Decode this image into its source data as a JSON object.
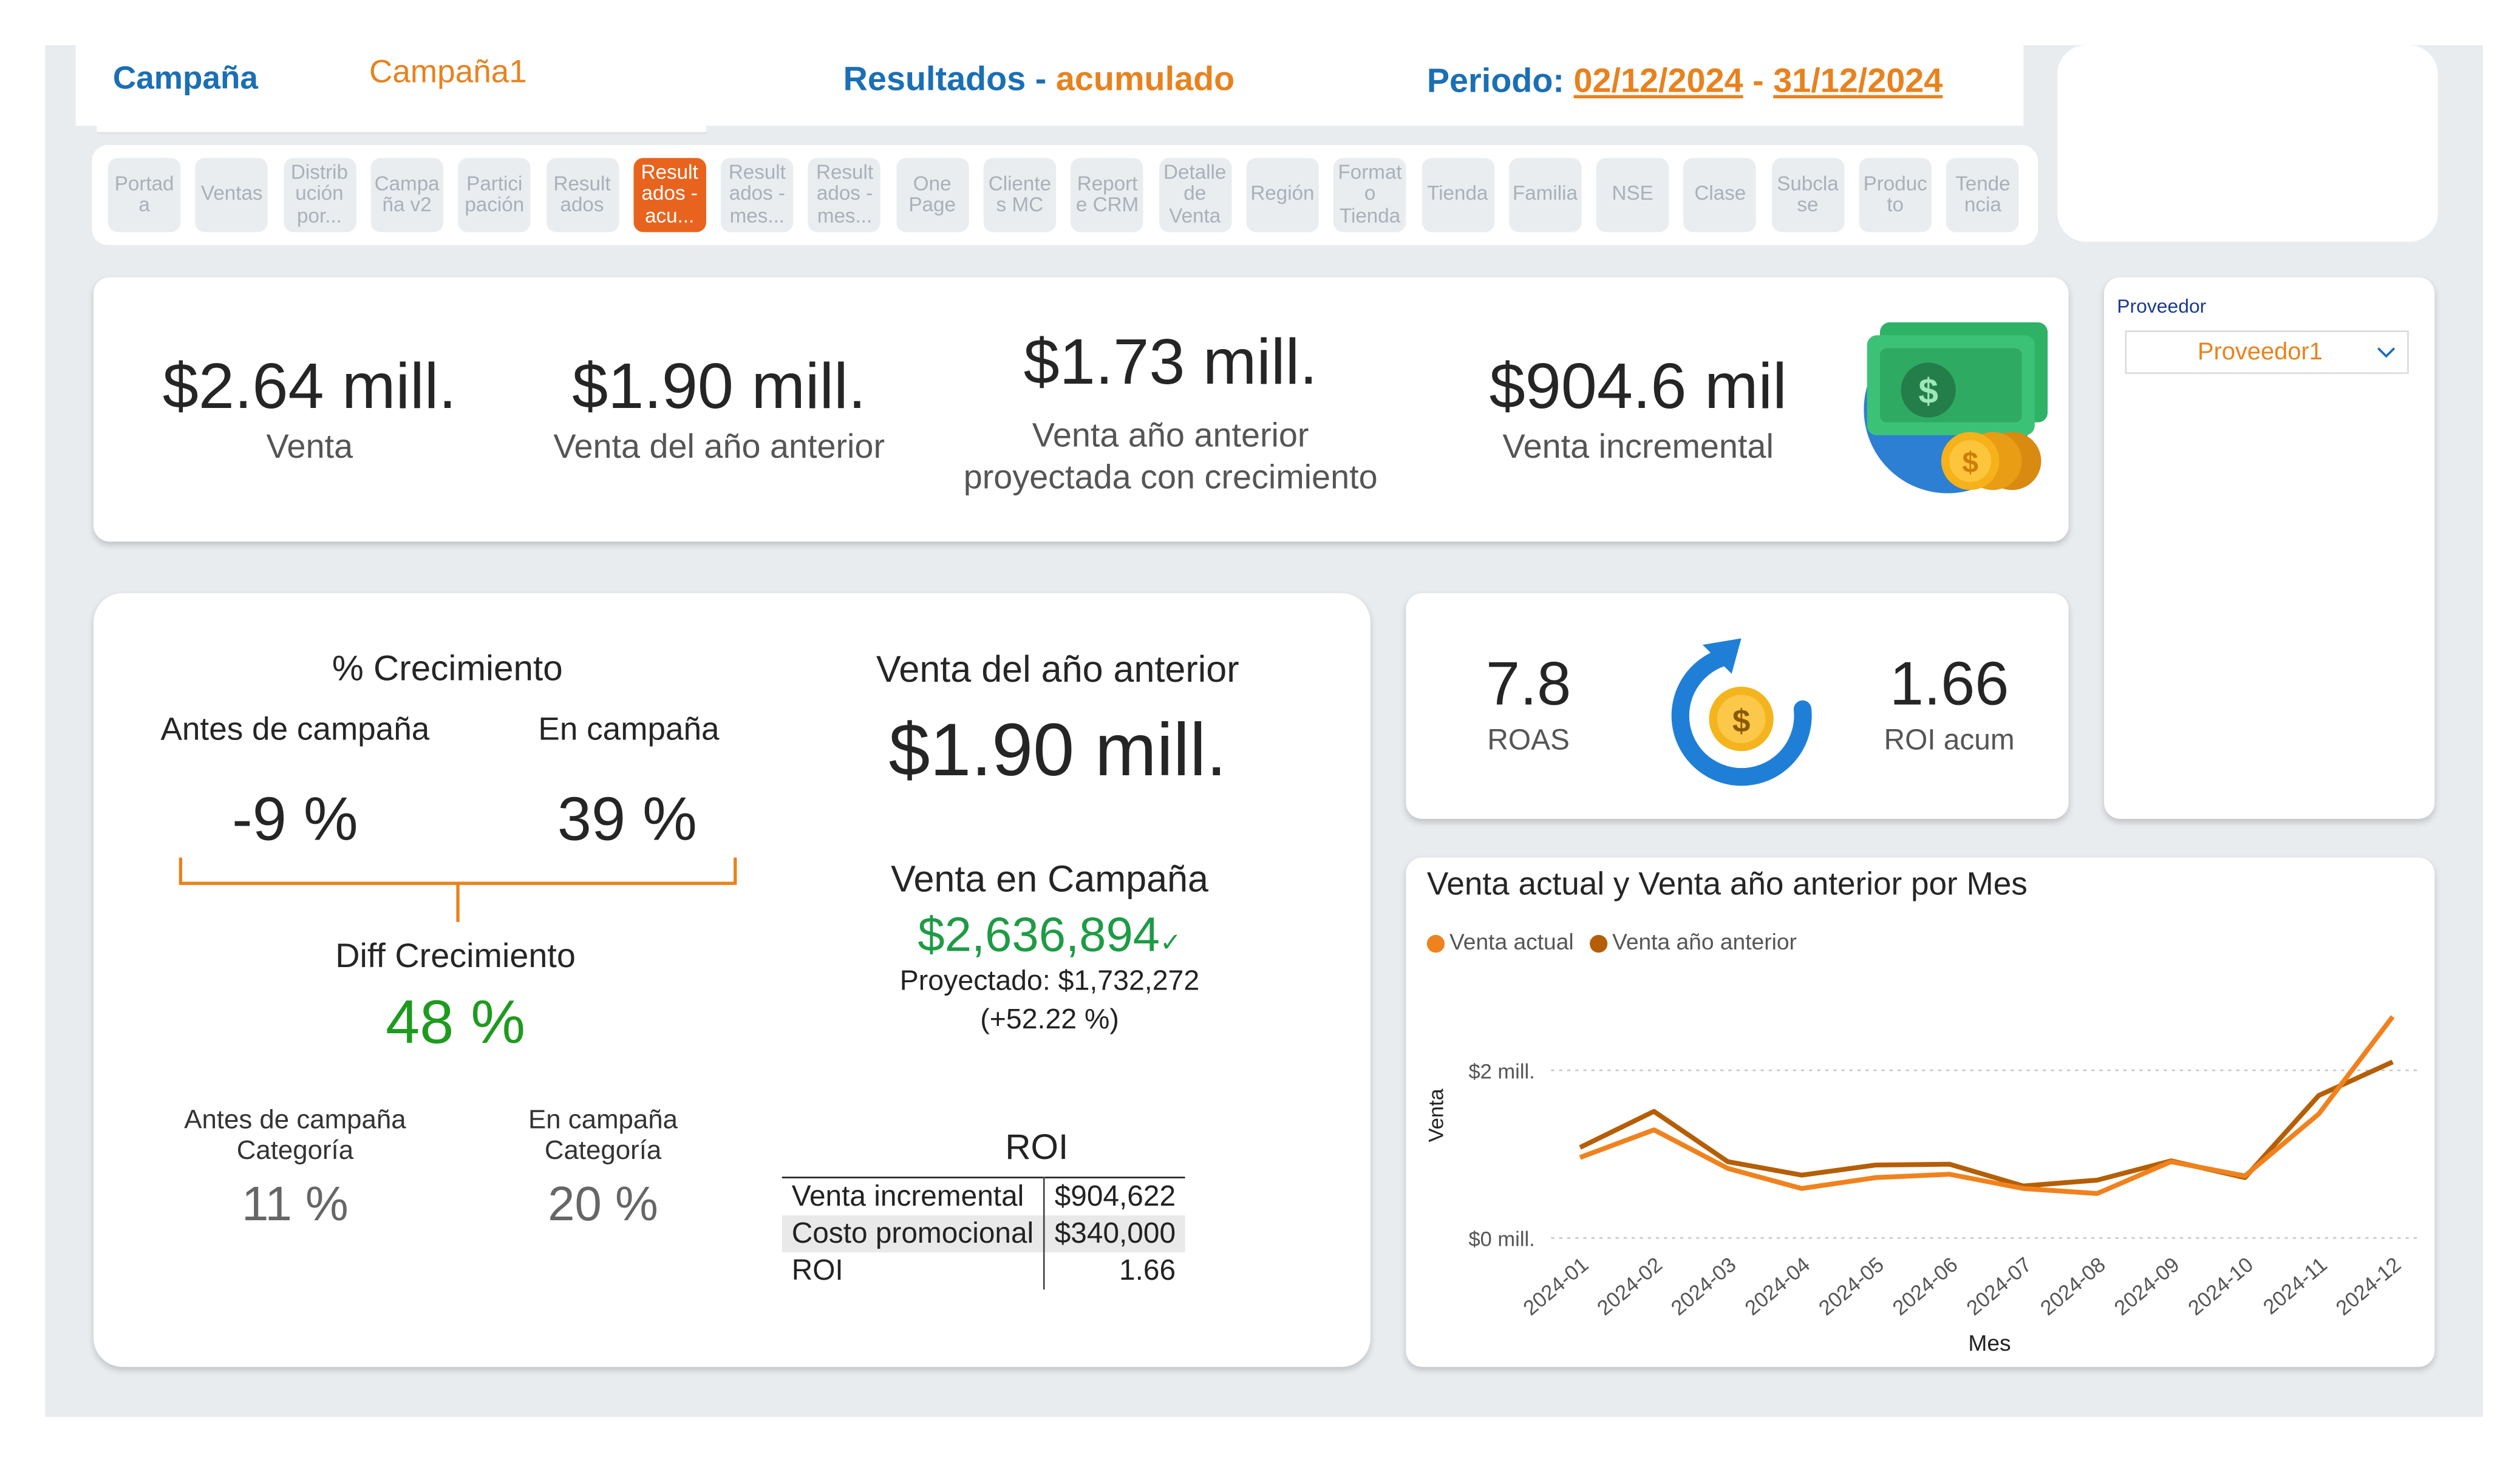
{
  "header": {
    "campaign_label": "Campaña",
    "campaign_value": "Campaña1",
    "title_part1": "Resultados",
    "title_sep": "-",
    "title_part2": "acumulado",
    "period_label": "Periodo:",
    "period_start": "02/12/2024",
    "period_sep": "-",
    "period_end": "31/12/2024"
  },
  "tabs": [
    {
      "label": "Portad a",
      "active": false
    },
    {
      "label": "Ventas",
      "active": false
    },
    {
      "label": "Distrib ución por...",
      "active": false
    },
    {
      "label": "Campa ña v2",
      "active": false
    },
    {
      "label": "Partici pación",
      "active": false
    },
    {
      "label": "Result ados",
      "active": false
    },
    {
      "label": "Result ados - acu...",
      "active": true
    },
    {
      "label": "Result ados - mes...",
      "active": false
    },
    {
      "label": "Result ados - mes...",
      "active": false
    },
    {
      "label": "One Page",
      "active": false
    },
    {
      "label": "Cliente s MC",
      "active": false
    },
    {
      "label": "Report e CRM",
      "active": false
    },
    {
      "label": "Detalle de Venta",
      "active": false
    },
    {
      "label": "Región",
      "active": false
    },
    {
      "label": "Format o Tienda",
      "active": false
    },
    {
      "label": "Tienda",
      "active": false
    },
    {
      "label": "Familia",
      "active": false
    },
    {
      "label": "NSE",
      "active": false
    },
    {
      "label": "Clase",
      "active": false
    },
    {
      "label": "Subcla se",
      "active": false
    },
    {
      "label": "Produc to",
      "active": false
    },
    {
      "label": "Tende ncia",
      "active": false
    }
  ],
  "kpis": {
    "venta": {
      "value": "$2.64 mill.",
      "label": "Venta"
    },
    "venta_anterior": {
      "value": "$1.90 mill.",
      "label": "Venta del año anterior"
    },
    "venta_proyectada": {
      "value": "$1.73 mill.",
      "label_line1": "Venta año anterior",
      "label_line2": "proyectada con crecimiento"
    },
    "venta_incremental": {
      "value": "$904.6 mil",
      "label": "Venta incremental"
    }
  },
  "filter": {
    "label": "Proveedor",
    "value": "Proveedor1"
  },
  "growth": {
    "title": "% Crecimiento",
    "before_label": "Antes de campaña",
    "during_label": "En campaña",
    "before_value": "-9 %",
    "during_value": "39 %",
    "diff_label": "Diff Crecimiento",
    "diff_value": "48 %",
    "cat_before_label1": "Antes de campaña",
    "cat_before_label2": "Categoría",
    "cat_before_value": "11 %",
    "cat_during_label1": "En campaña",
    "cat_during_label2": "Categoría",
    "cat_during_value": "20 %"
  },
  "prev_year": {
    "title": "Venta del año anterior",
    "value": "$1.90 mill.",
    "campaign_title": "Venta en Campaña",
    "campaign_value": "$2,636,894",
    "check": "✓",
    "projected": "Proyectado: $1,732,272",
    "projected_pct": "(+52.22 %)"
  },
  "roi_table": {
    "title": "ROI",
    "rows": [
      {
        "label": "Venta incremental",
        "value": "$904,622"
      },
      {
        "label": "Costo promocional",
        "value": "$340,000"
      },
      {
        "label": "ROI",
        "value": "1.66"
      }
    ]
  },
  "roas": {
    "roas_value": "7.8",
    "roas_label": "ROAS",
    "roi_value": "1.66",
    "roi_label": "ROI acum"
  },
  "chart_data": {
    "type": "line",
    "title": "Venta actual y Venta año anterior por Mes",
    "xlabel": "Mes",
    "ylabel": "Venta",
    "x": [
      "2024-01",
      "2024-02",
      "2024-03",
      "2024-04",
      "2024-05",
      "2024-06",
      "2024-07",
      "2024-08",
      "2024-09",
      "2024-10",
      "2024-11",
      "2024-12"
    ],
    "y_ticks": [
      "$0 mill.",
      "$2 mill."
    ],
    "ylim": [
      0,
      2000000
    ],
    "series": [
      {
        "name": "Venta actual",
        "color": "#f0821e",
        "values": [
          960000,
          1290000,
          830000,
          590000,
          720000,
          760000,
          590000,
          530000,
          910000,
          740000,
          1480000,
          2640000
        ]
      },
      {
        "name": "Venta año anterior",
        "color": "#b45f06",
        "values": [
          1080000,
          1510000,
          910000,
          750000,
          870000,
          880000,
          620000,
          690000,
          920000,
          720000,
          1700000,
          2100000
        ]
      }
    ],
    "legend": "top-left",
    "grid": true,
    "colors": {
      "actual": "#f0821e",
      "anterior": "#b45f06"
    }
  }
}
